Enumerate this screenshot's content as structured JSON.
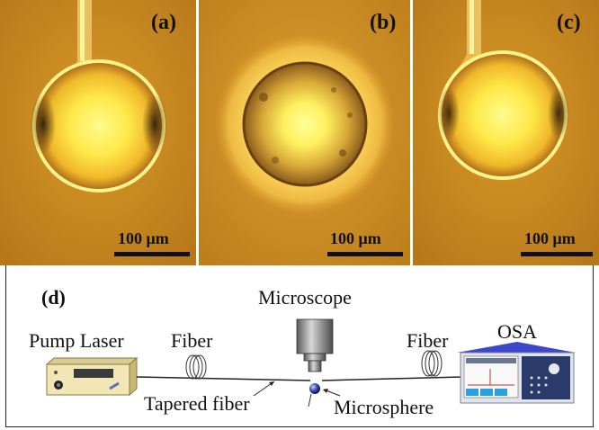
{
  "panels": [
    {
      "label": "(a)",
      "scale": "100 μm"
    },
    {
      "label": "(b)",
      "scale": "100 μm"
    },
    {
      "label": "(c)",
      "scale": "100 μm"
    }
  ],
  "setup": {
    "label": "(d)",
    "pump_laser": "Pump Laser",
    "fiber_left": "Fiber",
    "microscope": "Microscope",
    "fiber_right": "Fiber",
    "osa": "OSA",
    "tapered_fiber": "Tapered fiber",
    "microsphere": "Microsphere"
  },
  "colors": {
    "background": "#c98a1c",
    "sphere_core": "#fff25a",
    "sphere_rim": "#ffd23a",
    "osa_roof": "#3d47c9",
    "laser_body": "#f1e6b4"
  }
}
